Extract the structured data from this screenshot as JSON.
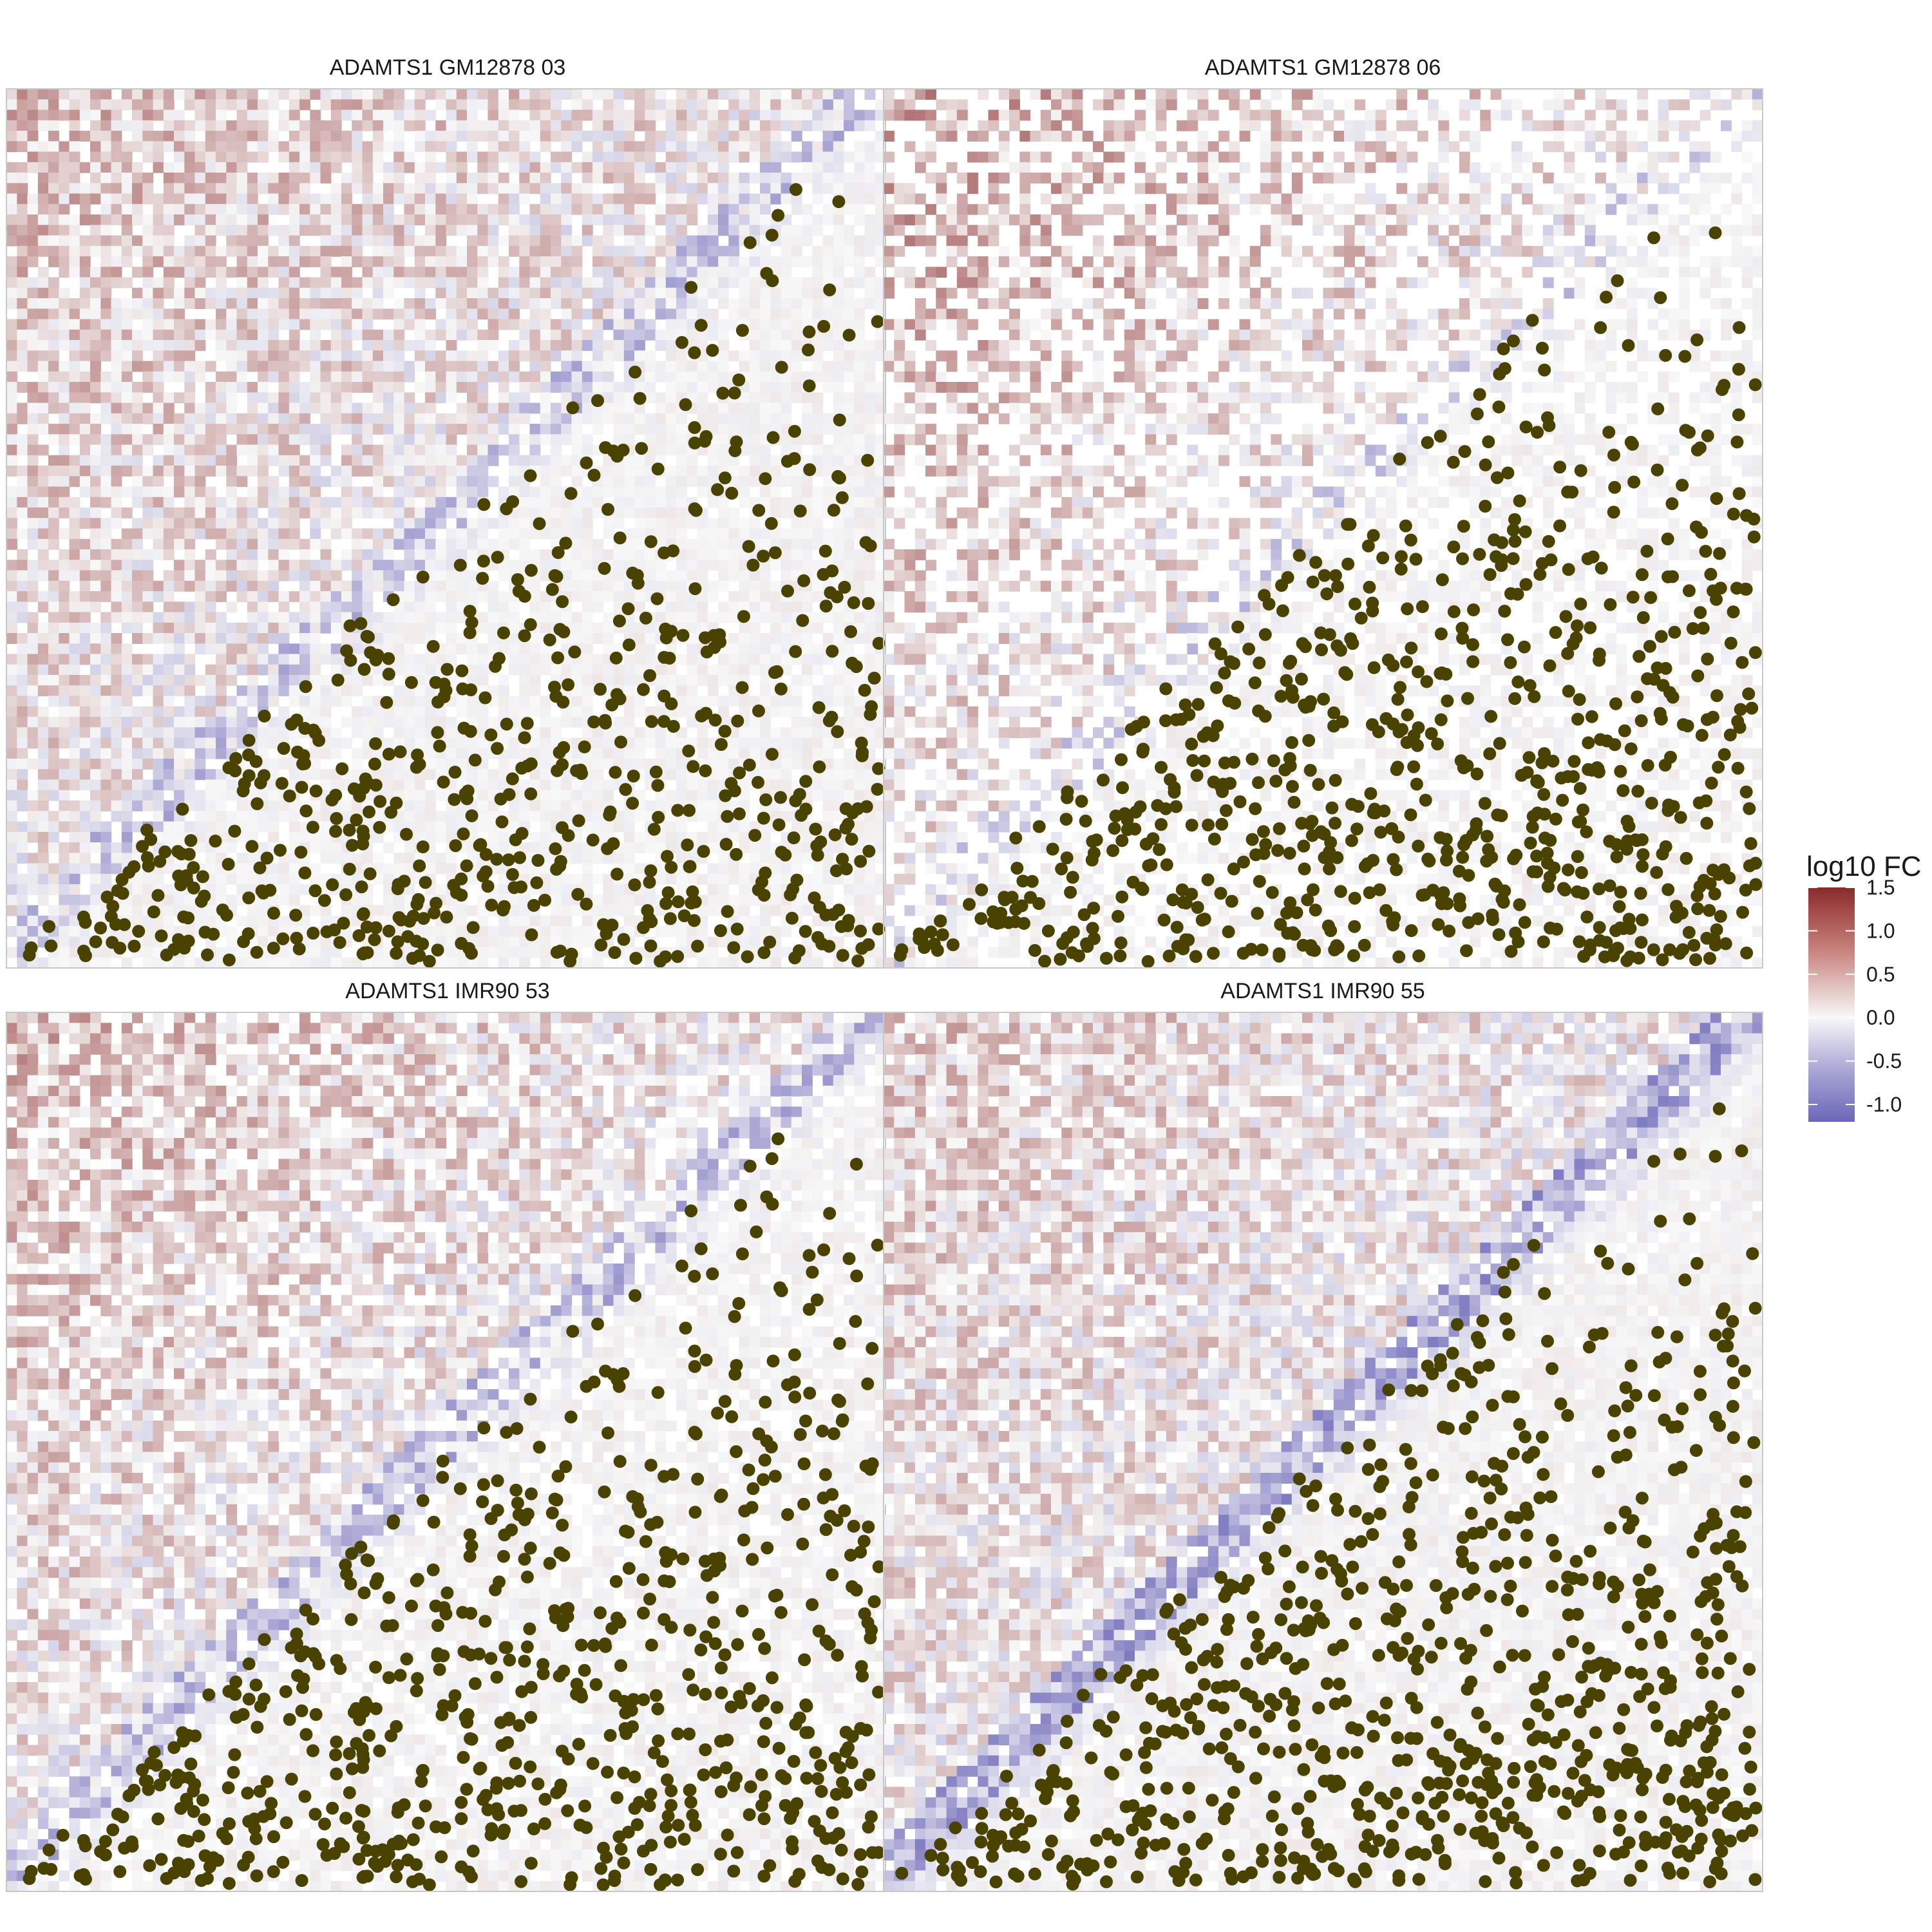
{
  "chart_data": {
    "type": "heatmap",
    "description_colors": {
      "low": "#6b66b8",
      "mid": "#f8f8f8",
      "high": "#8b2a2a",
      "points": "#4a4200",
      "panel_border": "#c8c8c8"
    },
    "legend": {
      "title": "log10 FC",
      "placement": "right",
      "range": [
        -1.2,
        1.5
      ],
      "ticks": [
        1.5,
        1.0,
        0.5,
        0.0,
        -0.5,
        -1.0
      ],
      "tick_labels": [
        "1.5",
        "1.0",
        "0.5",
        "0.0",
        "-0.5",
        "-1.0"
      ]
    },
    "panels": [
      {
        "title": "ADAMTS1 GM12878 03"
      },
      {
        "title": "ADAMTS1 GM12878 06"
      },
      {
        "title": "ADAMTS1 IMR90 53"
      },
      {
        "title": "ADAMTS1 IMR90 55"
      }
    ]
  }
}
